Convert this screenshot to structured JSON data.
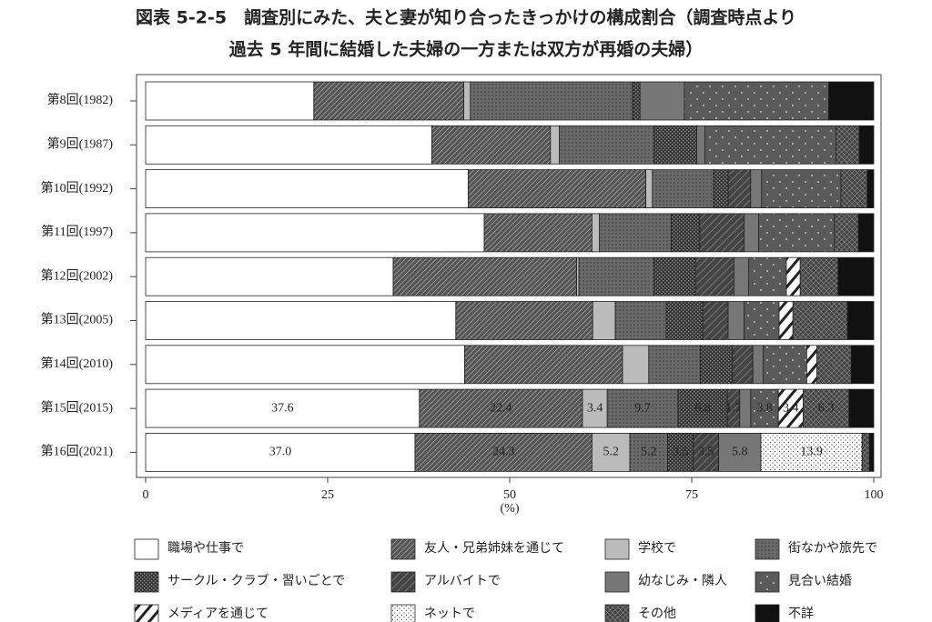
{
  "chart_data": {
    "type": "stacked-bar-horizontal",
    "title": [
      "図表 5-2-5　調査別にみた、夫と妻が知り合ったきっかけの構成割合（調査時点より",
      "過去 5 年間に結婚した夫婦の一方または双方が再婚の夫婦）"
    ],
    "categories": [
      "第8回(1982)",
      "第9回(1987)",
      "第10回(1992)",
      "第11回(1997)",
      "第12回(2002)",
      "第13回(2005)",
      "第14回(2010)",
      "第15回(2015)",
      "第16回(2021)"
    ],
    "xlim": [
      0,
      100
    ],
    "xticks": [
      0,
      25,
      50,
      75,
      100
    ],
    "xlabel": "(%)",
    "series": [
      {
        "name": "職場や仕事で",
        "color": "#ffffff",
        "pattern": "none",
        "values": [
          23.1,
          39.3,
          44.3,
          46.5,
          34.0,
          42.6,
          43.8,
          37.6,
          37.0
        ],
        "value_labels": [
          null,
          null,
          null,
          null,
          null,
          null,
          null,
          "37.6",
          "37.0"
        ]
      },
      {
        "name": "友人・兄弟姉妹を通じて",
        "color": "#555555",
        "pattern": "hatch",
        "values": [
          20.6,
          16.3,
          24.4,
          14.8,
          25.2,
          18.8,
          21.7,
          22.4,
          24.3
        ],
        "value_labels": [
          null,
          null,
          null,
          null,
          null,
          null,
          null,
          "22.4",
          "24.3"
        ]
      },
      {
        "name": "学校で",
        "color": "#bbbbbb",
        "pattern": "none",
        "values": [
          0.9,
          1.2,
          0.9,
          1.0,
          0.3,
          3.1,
          3.6,
          3.4,
          5.2
        ],
        "value_labels": [
          null,
          null,
          null,
          null,
          null,
          null,
          null,
          "3.4",
          "5.2"
        ]
      },
      {
        "name": "街なかや旅先で",
        "color": "#6a6a6a",
        "pattern": "finedots",
        "values": [
          22.3,
          13.0,
          8.4,
          9.9,
          10.3,
          7.0,
          7.1,
          9.7,
          5.2
        ],
        "value_labels": [
          null,
          null,
          null,
          null,
          null,
          null,
          null,
          "9.7",
          "5.2"
        ]
      },
      {
        "name": "サークル・クラブ・習いごとで",
        "color": "#333333",
        "pattern": "checker",
        "values": [
          1.0,
          5.9,
          2.0,
          3.9,
          5.7,
          5.0,
          4.4,
          6.8,
          3.5
        ],
        "value_labels": [
          null,
          null,
          null,
          null,
          null,
          null,
          null,
          "6.8",
          "3.5"
        ]
      },
      {
        "name": "アルバイトで",
        "color": "#444444",
        "pattern": "darkhatch",
        "values": [
          0,
          0,
          3.1,
          6.1,
          5.3,
          3.5,
          2.8,
          1.7,
          3.5
        ],
        "value_labels": [
          null,
          null,
          null,
          null,
          null,
          null,
          null,
          "1.7",
          "3.5"
        ]
      },
      {
        "name": "幼なじみ・隣人",
        "color": "#777777",
        "pattern": "none",
        "values": [
          6.1,
          1.1,
          1.5,
          2.0,
          2.0,
          2.2,
          1.4,
          1.5,
          5.8
        ],
        "value_labels": [
          null,
          null,
          null,
          null,
          null,
          null,
          null,
          null,
          "5.8"
        ]
      },
      {
        "name": "見合い結婚",
        "color": "#5a5a5a",
        "pattern": "whitedots",
        "values": [
          19.8,
          18.0,
          10.9,
          10.4,
          5.2,
          4.8,
          6.0,
          3.8,
          0
        ],
        "value_labels": [
          null,
          null,
          null,
          null,
          null,
          null,
          null,
          "3.8",
          null
        ]
      },
      {
        "name": "メディアを通じて",
        "color": "#ffffff",
        "pattern": "slash",
        "values": [
          0,
          0,
          0,
          0,
          1.9,
          1.9,
          1.4,
          3.4,
          0
        ],
        "value_labels": [
          null,
          null,
          null,
          null,
          null,
          null,
          null,
          "3.4",
          null
        ]
      },
      {
        "name": "ネットで",
        "color": "#ffffff",
        "pattern": "blackdots",
        "values": [
          0,
          0,
          0,
          0,
          0,
          0,
          0,
          0,
          13.9
        ],
        "value_labels": [
          null,
          null,
          null,
          null,
          null,
          null,
          null,
          null,
          "13.9"
        ]
      },
      {
        "name": "その他",
        "color": "#444444",
        "pattern": "cross",
        "values": [
          0,
          3.2,
          3.6,
          3.3,
          5.2,
          7.5,
          4.7,
          6.3,
          1.0
        ],
        "value_labels": [
          null,
          null,
          null,
          null,
          null,
          null,
          null,
          "6.3",
          null
        ]
      },
      {
        "name": "不詳",
        "color": "#111111",
        "pattern": "none",
        "values": [
          6.2,
          2.0,
          0.9,
          2.1,
          4.9,
          3.6,
          3.1,
          3.4,
          0.6
        ],
        "value_labels": [
          null,
          null,
          null,
          null,
          null,
          null,
          null,
          null,
          null
        ]
      }
    ]
  }
}
